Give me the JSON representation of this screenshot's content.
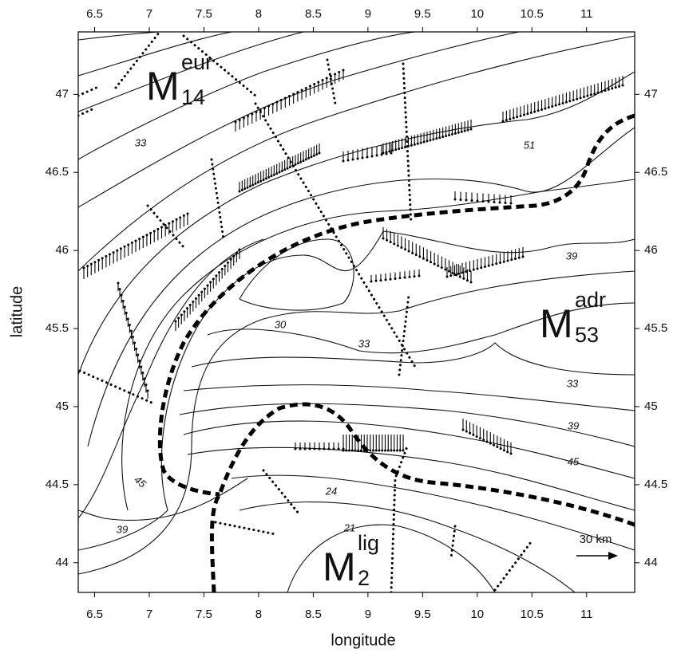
{
  "chart_data": {
    "type": "map",
    "x_label": "longitude",
    "y_label": "latitude",
    "xlim": [
      6.35,
      11.44
    ],
    "ylim": [
      43.81,
      47.4
    ],
    "xticks": [
      6.5,
      7,
      7.5,
      8,
      8.5,
      9,
      9.5,
      10,
      10.5,
      11
    ],
    "yticks": [
      44,
      44.5,
      45,
      45.5,
      46,
      46.5,
      47
    ],
    "contour_labels": [
      "33",
      "51",
      "39",
      "30",
      "33",
      "33",
      "39",
      "45",
      "45",
      "39",
      "24",
      "21"
    ],
    "regions": [
      {
        "main": "M",
        "sup": "eur",
        "sub": "14"
      },
      {
        "main": "M",
        "sup": "adr",
        "sub": "53"
      },
      {
        "main": "M",
        "sup": "lig",
        "sub": "2"
      }
    ],
    "scale_label": "30 km"
  }
}
